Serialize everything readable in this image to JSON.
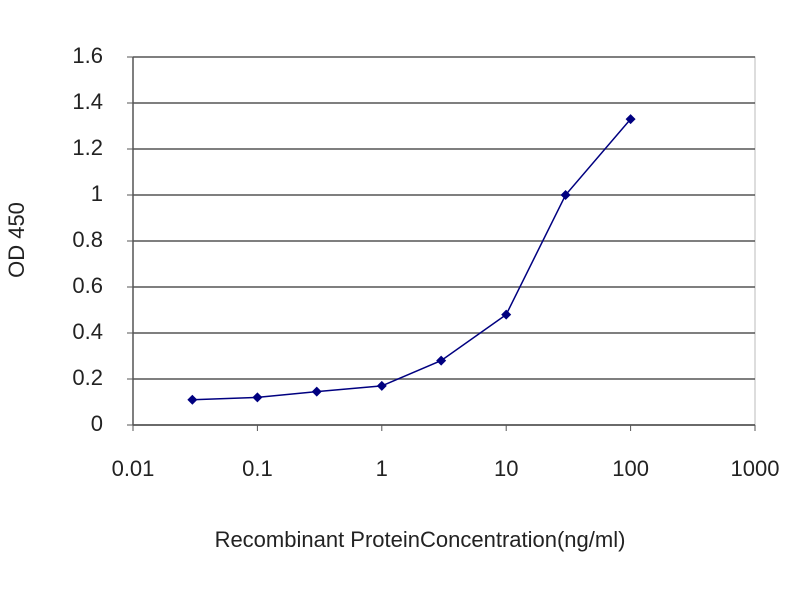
{
  "chart_data": {
    "type": "line",
    "xlabel": "Recombinant ProteinConcentration(ng/ml)",
    "ylabel": "OD 450",
    "xscale": "log",
    "grid": true,
    "series": [
      {
        "color": "#000080",
        "x": [
          0.03,
          0.1,
          0.3,
          1,
          3,
          10,
          30,
          100
        ],
        "values": [
          0.11,
          0.12,
          0.145,
          0.17,
          0.28,
          0.48,
          1.0,
          1.33
        ]
      }
    ],
    "xlim": [
      0.01,
      1000
    ],
    "xticks": [
      0.01,
      0.1,
      1,
      10,
      100,
      1000
    ],
    "ylim": [
      0,
      1.6
    ],
    "yticks": [
      0,
      0.2,
      0.4,
      0.6,
      0.8,
      1,
      1.2,
      1.4,
      1.6
    ]
  }
}
